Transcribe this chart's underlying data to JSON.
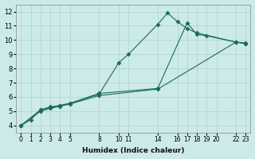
{
  "xlabel": "Humidex (Indice chaleur)",
  "background_color": "#cceae8",
  "grid_color": "#b0d0d0",
  "line_color": "#1a6b5a",
  "series": [
    {
      "x": [
        0,
        1,
        2,
        3,
        4,
        5,
        8,
        10,
        11,
        14,
        15,
        16,
        17,
        18,
        22,
        23
      ],
      "y": [
        4.0,
        4.4,
        5.1,
        5.3,
        5.4,
        5.55,
        6.2,
        8.4,
        9.0,
        11.1,
        11.9,
        11.3,
        10.8,
        10.5,
        9.85,
        9.8
      ],
      "marker": "D",
      "markersize": 2.5
    },
    {
      "x": [
        0,
        2,
        3,
        4,
        5,
        8,
        14,
        17,
        18,
        19,
        22,
        23
      ],
      "y": [
        4.0,
        5.1,
        5.25,
        5.4,
        5.55,
        6.25,
        6.6,
        11.2,
        10.4,
        10.3,
        9.85,
        9.75
      ],
      "marker": "D",
      "markersize": 2.5
    },
    {
      "x": [
        0,
        2,
        3,
        4,
        5,
        8,
        14,
        22,
        23
      ],
      "y": [
        4.0,
        5.0,
        5.2,
        5.35,
        5.5,
        6.1,
        6.55,
        9.85,
        9.75
      ],
      "marker": "D",
      "markersize": 2.5
    }
  ],
  "xlim": [
    -0.5,
    23.5
  ],
  "ylim": [
    3.5,
    12.5
  ],
  "yticks": [
    4,
    5,
    6,
    7,
    8,
    9,
    10,
    11,
    12
  ],
  "xticks": [
    0,
    1,
    2,
    3,
    4,
    5,
    8,
    10,
    11,
    14,
    16,
    17,
    18,
    19,
    20,
    22,
    23
  ],
  "xtick_labels": [
    "0",
    "1",
    "2",
    "3",
    "4",
    "5",
    "8",
    "10",
    "11",
    "14",
    "16",
    "17",
    "18",
    "19",
    "20",
    "22",
    "23"
  ]
}
